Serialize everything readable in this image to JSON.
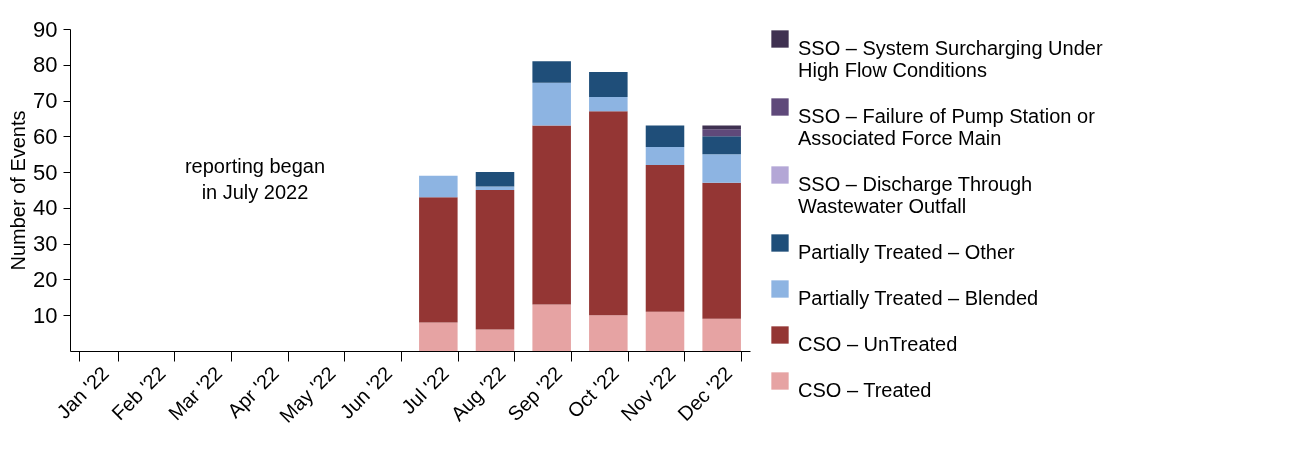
{
  "chart_data": {
    "type": "bar",
    "stacked": true,
    "ylabel": "Number of Events",
    "categories": [
      "Jan '22",
      "Feb '22",
      "Mar '22",
      "Apr '22",
      "May '22",
      "Jun '22",
      "Jul '22",
      "Aug '22",
      "Sep '22",
      "Oct '22",
      "Nov '22",
      "Dec '22"
    ],
    "series": [
      {
        "name": "CSO – Treated",
        "color": "#e6a3a3",
        "values": [
          null,
          null,
          null,
          null,
          null,
          null,
          8,
          6,
          13,
          10,
          11,
          9
        ]
      },
      {
        "name": "CSO – UnTreated",
        "color": "#943634",
        "values": [
          null,
          null,
          null,
          null,
          null,
          null,
          35,
          39,
          50,
          57,
          41,
          38
        ]
      },
      {
        "name": "Partially Treated – Blended",
        "color": "#8db4e2",
        "values": [
          null,
          null,
          null,
          null,
          null,
          null,
          6,
          1,
          12,
          4,
          5,
          8
        ]
      },
      {
        "name": "Partially Treated – Other",
        "color": "#1f4e79",
        "values": [
          null,
          null,
          null,
          null,
          null,
          null,
          null,
          4,
          6,
          7,
          6,
          5
        ]
      },
      {
        "name": "SSO – Discharge Through Wastewater Outfall",
        "color": "#b4a7d6",
        "values": [
          null,
          null,
          null,
          null,
          null,
          null,
          null,
          null,
          null,
          null,
          null,
          null
        ]
      },
      {
        "name": "SSO – Failure of Pump Station or Associated Force Main",
        "color": "#5f497a",
        "values": [
          null,
          null,
          null,
          null,
          null,
          null,
          null,
          null,
          null,
          null,
          null,
          2
        ]
      },
      {
        "name": "SSO – System Surcharging Under High Flow Conditions",
        "color": "#3f3151",
        "values": [
          null,
          null,
          null,
          null,
          null,
          null,
          null,
          null,
          null,
          null,
          null,
          1
        ]
      }
    ],
    "ylim": [
      0,
      90
    ],
    "yticks": [
      10,
      20,
      30,
      40,
      50,
      60,
      70,
      80,
      90
    ],
    "annotations": [
      "reporting began\nin July 2022"
    ],
    "legend": "right"
  }
}
